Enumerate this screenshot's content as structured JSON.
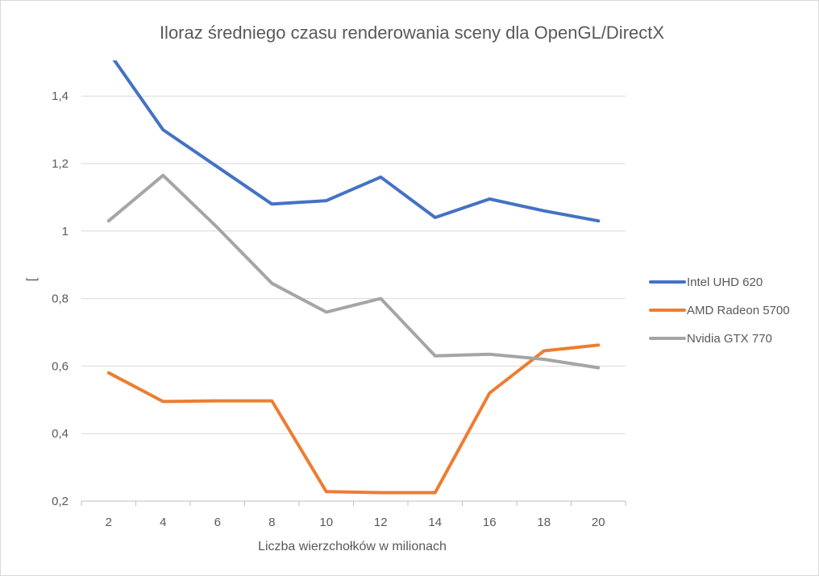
{
  "chart_data": {
    "type": "line",
    "title": "Iloraz średniego czasu renderowania sceny dla OpenGL/DirectX",
    "xlabel": "Liczba wierzchołków w milionach",
    "ylabel": "[",
    "categories": [
      "2",
      "4",
      "6",
      "8",
      "10",
      "12",
      "14",
      "16",
      "18",
      "20"
    ],
    "ylim": [
      0.2,
      1.5
    ],
    "yticks": [
      0.2,
      0.4,
      0.6,
      0.8,
      1.0,
      1.2,
      1.4
    ],
    "ytick_labels": [
      "0,2",
      "0,4",
      "0,6",
      "0,8",
      "1",
      "1,2",
      "1,4"
    ],
    "grid": true,
    "legend_position": "right",
    "series": [
      {
        "name": "Intel UHD 620",
        "color": "#4472c4",
        "values": [
          1.53,
          1.3,
          1.19,
          1.08,
          1.09,
          1.16,
          1.04,
          1.095,
          1.06,
          1.03
        ]
      },
      {
        "name": "AMD Radeon 5700",
        "color": "#ed7d31",
        "values": [
          0.58,
          0.495,
          0.497,
          0.497,
          0.228,
          0.225,
          0.225,
          0.52,
          0.645,
          0.662
        ]
      },
      {
        "name": "Nvidia GTX 770",
        "color": "#a5a5a5",
        "values": [
          1.03,
          1.165,
          1.01,
          0.845,
          0.76,
          0.8,
          0.63,
          0.635,
          0.62,
          0.595
        ]
      }
    ]
  }
}
